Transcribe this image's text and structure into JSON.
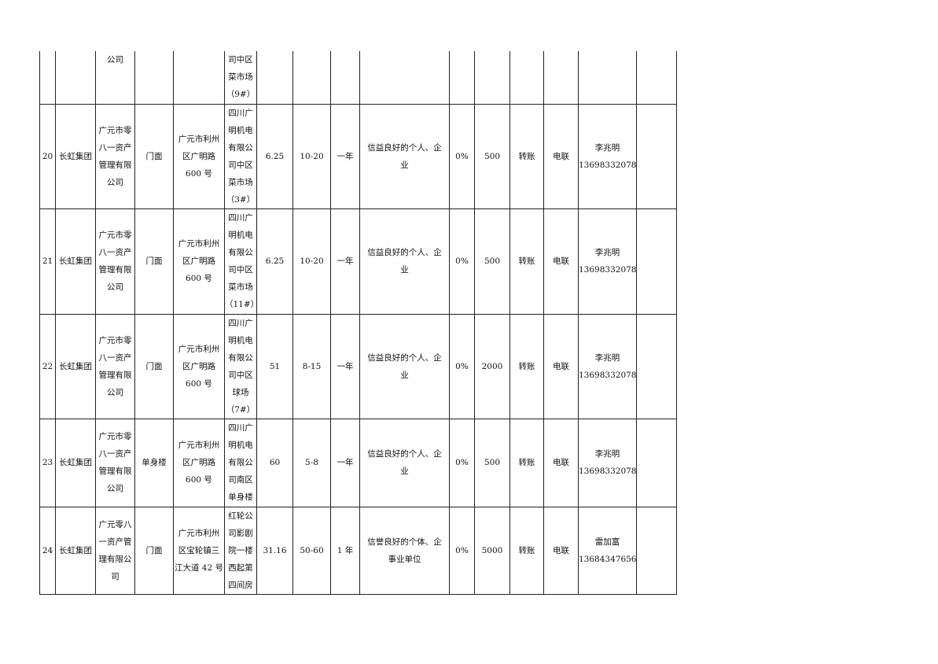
{
  "table": {
    "rows": [
      [
        "",
        "",
        "公司",
        "",
        "",
        "司中区\n菜市场\n（9#）",
        "",
        "",
        "",
        "",
        "",
        "",
        "",
        "",
        "",
        ""
      ],
      [
        "20",
        "长虹集团",
        "广元市零\n八一资产\n管理有限\n公司",
        "门面",
        "广元市利州\n区广明路\n600 号",
        "四川广\n明机电\n有限公\n司中区\n菜市场\n（3#）",
        "6.25",
        "10-20",
        "一年",
        "信益良好的个人、企\n业",
        "0%",
        "500",
        "转账",
        "电联",
        "李兆明\n13698332078",
        ""
      ],
      [
        "21",
        "长虹集团",
        "广元市零\n八一资产\n管理有限\n公司",
        "门面",
        "广元市利州\n区广明路\n600 号",
        "四川广\n明机电\n有限公\n司中区\n菜市场\n（11#）",
        "6.25",
        "10-20",
        "一年",
        "信益良好的个人、企\n业",
        "0%",
        "500",
        "转账",
        "电联",
        "李兆明\n13698332078",
        ""
      ],
      [
        "22",
        "长虹集团",
        "广元市零\n八一资产\n管理有限\n公司",
        "门面",
        "广元市利州\n区广明路\n600 号",
        "四川广\n明机电\n有限公\n司中区\n球场\n（7#）",
        "51",
        "8-15",
        "一年",
        "信益良好的个人、企\n业",
        "0%",
        "2000",
        "转账",
        "电联",
        "李兆明\n13698332078",
        ""
      ],
      [
        "23",
        "长虹集团",
        "广元市零\n八一资产\n管理有限\n公司",
        "单身楼",
        "广元市利州\n区广明路\n600 号",
        "四川广\n明机电\n有限公\n司南区\n单身楼",
        "60",
        "5-8",
        "一年",
        "信益良好的个人、企\n业",
        "0%",
        "500",
        "转账",
        "电联",
        "李兆明\n13698332078",
        ""
      ],
      [
        "24",
        "长虹集团",
        "广元零八\n一资产管\n理有限公\n司",
        "门面",
        "广元市利州\n区宝轮镇三\n江大道 42 号",
        "红轮公\n司影剧\n院一楼\n西起第\n四间房",
        "31.16",
        "50-60",
        "1 年",
        "信誉良好的个体、企\n事业单位",
        "0%",
        "5000",
        "转账",
        "电联",
        "雷加富\n13684347656",
        ""
      ]
    ]
  }
}
